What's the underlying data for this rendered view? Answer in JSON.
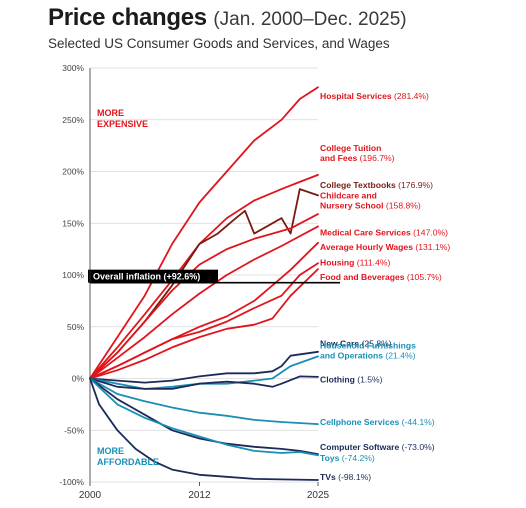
{
  "title": "Price changes",
  "title_range": "(Jan. 2000–Dec. 2025)",
  "subtitle": "Selected US Consumer Goods and Services, and Wages",
  "colors": {
    "red": "#e1141c",
    "dark_red": "#7a1a12",
    "navy": "#1b2a5a",
    "teal": "#1a8fb5",
    "grid": "#d8d8d8",
    "black": "#000000"
  },
  "chart_data": {
    "type": "line",
    "x_ticks": [
      "2000",
      "2012",
      "2025"
    ],
    "xlim": [
      2000,
      2025
    ],
    "y_ticks": [
      "300%",
      "250%",
      "200%",
      "150%",
      "100%",
      "50%",
      "0%",
      "-50%",
      "-100%"
    ],
    "ylim": [
      -100,
      300
    ],
    "region_labels": {
      "expensive": [
        "MORE",
        "EXPENSIVE"
      ],
      "affordable": [
        "MORE",
        "AFFORDABLE"
      ]
    },
    "overall_inflation": {
      "label": "Overall inflation (+92.6%)",
      "value": 92.6
    },
    "series": [
      {
        "name": "Hospital Services",
        "value_label": "(281.4%)",
        "final": 281.4,
        "color": "red",
        "points": [
          [
            2000,
            0
          ],
          [
            2003,
            40
          ],
          [
            2006,
            80
          ],
          [
            2009,
            130
          ],
          [
            2012,
            170
          ],
          [
            2015,
            200
          ],
          [
            2018,
            230
          ],
          [
            2021,
            250
          ],
          [
            2023,
            270
          ],
          [
            2025,
            281.4
          ]
        ]
      },
      {
        "name": "College Tuition and Fees",
        "value_label": "(196.7%)",
        "final": 196.7,
        "color": "red",
        "points": [
          [
            2000,
            0
          ],
          [
            2003,
            30
          ],
          [
            2006,
            62
          ],
          [
            2009,
            95
          ],
          [
            2012,
            130
          ],
          [
            2015,
            155
          ],
          [
            2018,
            172
          ],
          [
            2021,
            183
          ],
          [
            2023,
            190
          ],
          [
            2025,
            196.7
          ]
        ]
      },
      {
        "name": "College Textbooks",
        "value_label": "(176.9%)",
        "final": 176.9,
        "color": "dark_red",
        "points": [
          [
            2000,
            0
          ],
          [
            2003,
            25
          ],
          [
            2006,
            55
          ],
          [
            2009,
            90
          ],
          [
            2012,
            130
          ],
          [
            2014,
            140
          ],
          [
            2016,
            155
          ],
          [
            2017,
            162
          ],
          [
            2018,
            140
          ],
          [
            2020,
            150
          ],
          [
            2021,
            155
          ],
          [
            2022,
            140
          ],
          [
            2023,
            183
          ],
          [
            2025,
            176.9
          ]
        ]
      },
      {
        "name": "Childcare and Nursery School",
        "value_label": "(158.8%)",
        "final": 158.8,
        "color": "red",
        "points": [
          [
            2000,
            0
          ],
          [
            2003,
            25
          ],
          [
            2006,
            55
          ],
          [
            2009,
            85
          ],
          [
            2012,
            110
          ],
          [
            2015,
            125
          ],
          [
            2018,
            135
          ],
          [
            2020,
            140
          ],
          [
            2022,
            145
          ],
          [
            2025,
            158.8
          ]
        ]
      },
      {
        "name": "Medical Care Services",
        "value_label": "(147.0%)",
        "final": 147.0,
        "color": "red",
        "points": [
          [
            2000,
            0
          ],
          [
            2003,
            20
          ],
          [
            2006,
            40
          ],
          [
            2009,
            62
          ],
          [
            2012,
            82
          ],
          [
            2015,
            100
          ],
          [
            2018,
            115
          ],
          [
            2021,
            128
          ],
          [
            2025,
            147.0
          ]
        ]
      },
      {
        "name": "Average Hourly Wages",
        "value_label": "(131.1%)",
        "final": 131.1,
        "color": "red",
        "points": [
          [
            2000,
            0
          ],
          [
            2003,
            12
          ],
          [
            2006,
            25
          ],
          [
            2009,
            38
          ],
          [
            2012,
            50
          ],
          [
            2015,
            60
          ],
          [
            2018,
            75
          ],
          [
            2020,
            90
          ],
          [
            2022,
            105
          ],
          [
            2025,
            131.1
          ]
        ]
      },
      {
        "name": "Housing",
        "value_label": "(111.4%)",
        "final": 111.4,
        "color": "red",
        "points": [
          [
            2000,
            0
          ],
          [
            2003,
            12
          ],
          [
            2006,
            25
          ],
          [
            2009,
            38
          ],
          [
            2012,
            45
          ],
          [
            2015,
            55
          ],
          [
            2018,
            68
          ],
          [
            2021,
            80
          ],
          [
            2023,
            100
          ],
          [
            2025,
            111.4
          ]
        ]
      },
      {
        "name": "Food and Beverages",
        "value_label": "(105.7%)",
        "final": 105.7,
        "color": "red",
        "points": [
          [
            2000,
            0
          ],
          [
            2003,
            8
          ],
          [
            2006,
            18
          ],
          [
            2009,
            30
          ],
          [
            2012,
            40
          ],
          [
            2015,
            48
          ],
          [
            2018,
            52
          ],
          [
            2020,
            58
          ],
          [
            2022,
            80
          ],
          [
            2025,
            105.7
          ]
        ]
      },
      {
        "name": "New Cars",
        "value_label": "(25.8%)",
        "final": 25.8,
        "color": "navy",
        "points": [
          [
            2000,
            0
          ],
          [
            2003,
            -2
          ],
          [
            2006,
            -4
          ],
          [
            2009,
            -2
          ],
          [
            2012,
            2
          ],
          [
            2015,
            5
          ],
          [
            2018,
            5
          ],
          [
            2020,
            7
          ],
          [
            2021,
            12
          ],
          [
            2022,
            22
          ],
          [
            2025,
            25.8
          ]
        ]
      },
      {
        "name": "Household Furnishings and Operations",
        "value_label": "(21.4%)",
        "final": 21.4,
        "color": "teal",
        "points": [
          [
            2000,
            0
          ],
          [
            2003,
            -5
          ],
          [
            2006,
            -10
          ],
          [
            2009,
            -8
          ],
          [
            2012,
            -5
          ],
          [
            2015,
            -5
          ],
          [
            2018,
            -2
          ],
          [
            2020,
            0
          ],
          [
            2022,
            12
          ],
          [
            2025,
            21.4
          ]
        ]
      },
      {
        "name": "Clothing",
        "value_label": "(1.5%)",
        "final": 1.5,
        "color": "navy",
        "points": [
          [
            2000,
            0
          ],
          [
            2003,
            -8
          ],
          [
            2006,
            -10
          ],
          [
            2009,
            -10
          ],
          [
            2012,
            -5
          ],
          [
            2015,
            -3
          ],
          [
            2018,
            -5
          ],
          [
            2020,
            -8
          ],
          [
            2021,
            -5
          ],
          [
            2023,
            2
          ],
          [
            2025,
            1.5
          ]
        ]
      },
      {
        "name": "Cellphone Services",
        "value_label": "(-44.1%)",
        "final": -44.1,
        "color": "teal",
        "points": [
          [
            2000,
            0
          ],
          [
            2003,
            -15
          ],
          [
            2006,
            -22
          ],
          [
            2009,
            -28
          ],
          [
            2012,
            -33
          ],
          [
            2015,
            -36
          ],
          [
            2018,
            -40
          ],
          [
            2021,
            -42
          ],
          [
            2025,
            -44.1
          ]
        ]
      },
      {
        "name": "Computer Software",
        "value_label": "(-73.0%)",
        "final": -73.0,
        "color": "navy",
        "points": [
          [
            2000,
            0
          ],
          [
            2003,
            -20
          ],
          [
            2006,
            -35
          ],
          [
            2009,
            -50
          ],
          [
            2012,
            -58
          ],
          [
            2015,
            -63
          ],
          [
            2018,
            -66
          ],
          [
            2021,
            -68
          ],
          [
            2023,
            -70
          ],
          [
            2025,
            -73.0
          ]
        ]
      },
      {
        "name": "Toys",
        "value_label": "(-74.2%)",
        "final": -74.2,
        "color": "teal",
        "points": [
          [
            2000,
            0
          ],
          [
            2003,
            -25
          ],
          [
            2006,
            -38
          ],
          [
            2009,
            -48
          ],
          [
            2012,
            -56
          ],
          [
            2015,
            -64
          ],
          [
            2018,
            -70
          ],
          [
            2021,
            -72
          ],
          [
            2023,
            -71
          ],
          [
            2025,
            -74.2
          ]
        ]
      },
      {
        "name": "TVs",
        "value_label": "(-98.1%)",
        "final": -98.1,
        "color": "navy",
        "points": [
          [
            2000,
            0
          ],
          [
            2001,
            -25
          ],
          [
            2003,
            -50
          ],
          [
            2005,
            -68
          ],
          [
            2007,
            -80
          ],
          [
            2009,
            -88
          ],
          [
            2012,
            -93
          ],
          [
            2015,
            -95
          ],
          [
            2018,
            -97
          ],
          [
            2021,
            -97.5
          ],
          [
            2025,
            -98.1
          ]
        ]
      }
    ]
  },
  "labels": [
    {
      "lines": [
        "Hospital Services"
      ],
      "value": "(281.4%)",
      "color": "red",
      "y": 273
    },
    {
      "lines": [
        "College Tuition",
        "and Fees"
      ],
      "value": "(196.7%)",
      "color": "red",
      "y": 213
    },
    {
      "lines": [
        "College Textbooks"
      ],
      "value": "(176.9%)",
      "color": "dark_red",
      "y": 187
    },
    {
      "lines": [
        "Childcare and",
        "Nursery School"
      ],
      "value": "(158.8%)",
      "color": "red",
      "y": 167
    },
    {
      "lines": [
        "Medical Care Services"
      ],
      "value": "(147.0%)",
      "color": "red",
      "y": 141
    },
    {
      "lines": [
        "Average Hourly Wages"
      ],
      "value": "(131.1%)",
      "color": "red",
      "y": 127
    },
    {
      "lines": [
        "Housing"
      ],
      "value": "(111.4%)",
      "color": "red",
      "y": 112
    },
    {
      "lines": [
        "Food and Beverages"
      ],
      "value": "(105.7%)",
      "color": "red",
      "y": 98
    },
    {
      "lines": [
        "New Cars"
      ],
      "value": "(25.8%)",
      "color": "navy",
      "y": 34
    },
    {
      "lines": [
        "Household Furnishings",
        "and Operations"
      ],
      "value": "(21.4%)",
      "color": "teal",
      "y": 22
    },
    {
      "lines": [
        "Clothing"
      ],
      "value": "(1.5%)",
      "color": "navy",
      "y": -1
    },
    {
      "lines": [
        "Cellphone Services"
      ],
      "value": "(-44.1%)",
      "color": "teal",
      "y": -42
    },
    {
      "lines": [
        "Computer Software"
      ],
      "value": "(-73.0%)",
      "color": "navy",
      "y": -66
    },
    {
      "lines": [
        "Toys"
      ],
      "value": "(-74.2%)",
      "color": "teal",
      "y": -77
    },
    {
      "lines": [
        "TVs"
      ],
      "value": "(-98.1%)",
      "color": "navy",
      "y": -95
    }
  ]
}
